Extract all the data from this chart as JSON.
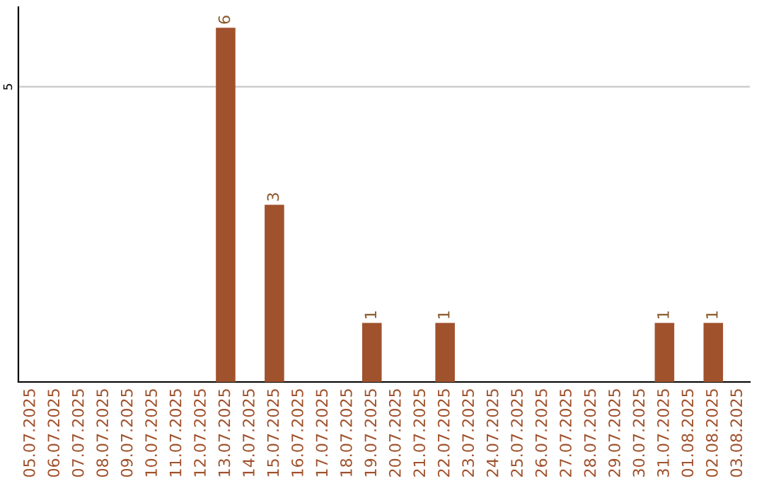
{
  "chart_data": {
    "type": "bar",
    "categories": [
      "05.07.2025",
      "06.07.2025",
      "07.07.2025",
      "08.07.2025",
      "09.07.2025",
      "10.07.2025",
      "11.07.2025",
      "12.07.2025",
      "13.07.2025",
      "14.07.2025",
      "15.07.2025",
      "16.07.2025",
      "17.07.2025",
      "18.07.2025",
      "19.07.2025",
      "20.07.2025",
      "21.07.2025",
      "22.07.2025",
      "23.07.2025",
      "24.07.2025",
      "25.07.2025",
      "26.07.2025",
      "27.07.2025",
      "28.07.2025",
      "29.07.2025",
      "30.07.2025",
      "31.07.2025",
      "01.08.2025",
      "02.08.2025",
      "03.08.2025"
    ],
    "values": [
      null,
      null,
      null,
      null,
      null,
      null,
      null,
      null,
      6,
      null,
      3,
      null,
      null,
      null,
      1,
      null,
      null,
      1,
      null,
      null,
      null,
      null,
      null,
      null,
      null,
      null,
      1,
      null,
      1,
      null
    ],
    "color": "#a0522d",
    "ylim": [
      0,
      6.35
    ],
    "yticks": [
      5
    ],
    "grid": "y",
    "data_labels": true
  }
}
